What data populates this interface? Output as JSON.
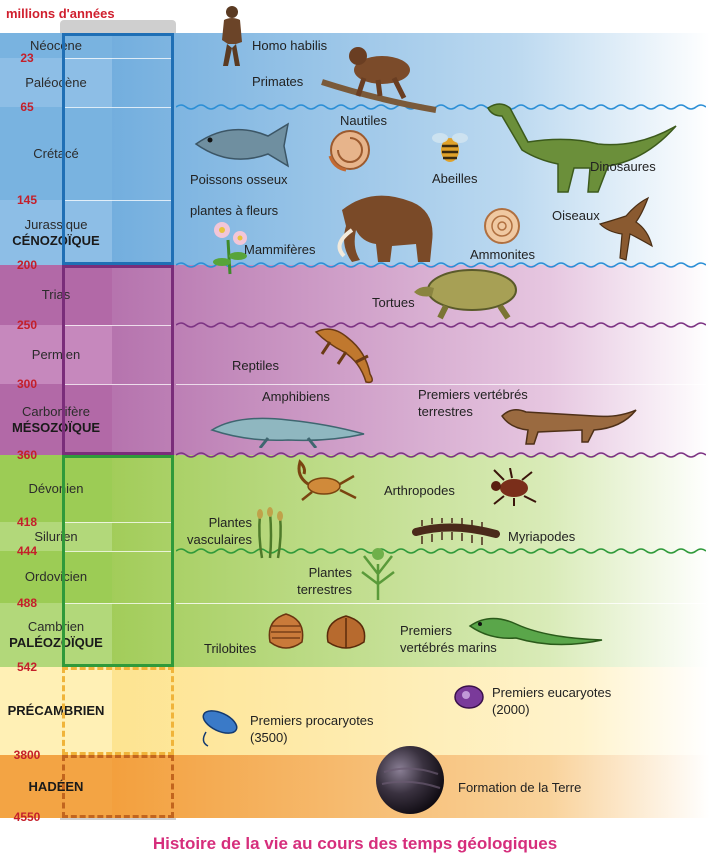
{
  "header": "millions d'années",
  "ticks": [
    "23",
    "65",
    "145",
    "200",
    "250",
    "300",
    "360",
    "418",
    "444",
    "488",
    "542",
    "3800",
    "4550"
  ],
  "periods": {
    "neocene": "Néocène",
    "paleocene": "Paléocène",
    "cretace": "Crétacé",
    "jurassique": "Jurassique",
    "trias": "Trias",
    "permien": "Permien",
    "carbonifere": "Carbonifère",
    "devonien": "Dévonien",
    "silurien": "Silurien",
    "ordovicien": "Ordovicien",
    "cambrien": "Cambrien"
  },
  "eras": {
    "cenozoique": "CÉNOZOÏQUE",
    "mesozoique": "MÉSOZOÏQUE",
    "paleozoique": "PALÉOZOÏQUE",
    "precambrien": "PRÉCAMBRIEN",
    "hadeen": "HADÉEN"
  },
  "labels": {
    "homo_habilis": "Homo habilis",
    "primates": "Primates",
    "nautiles": "Nautiles",
    "poissons_osseux": "Poissons osseux",
    "abeilles": "Abeilles",
    "dinosaures": "Dinosaures",
    "plantes_a_fleurs": "plantes à fleurs",
    "mammiferes": "Mammifères",
    "ammonites": "Ammonites",
    "oiseaux": "Oiseaux",
    "tortues": "Tortues",
    "reptiles": "Reptiles",
    "amphibiens": "Amphibiens",
    "premiers_vertebres_terrestres": [
      "Premiers vertébrés",
      "terrestres"
    ],
    "arthropodes": "Arthropodes",
    "plantes_vasculaires": [
      "Plantes",
      "vasculaires"
    ],
    "myriapodes": "Myriapodes",
    "plantes_terrestres": [
      "Plantes",
      "terrestres"
    ],
    "trilobites": "Trilobites",
    "premiers_vertebres_marins": [
      "Premiers",
      "vertébrés marins"
    ],
    "premiers_eucaryotes": [
      "Premiers eucaryotes",
      "(2000)"
    ],
    "premiers_procaryotes": [
      "Premiers procaryotes",
      "(3500)"
    ],
    "formation_terre": "Formation de la Terre"
  },
  "caption": "Histoire de la vie au cours des temps géologiques",
  "colors": {
    "cenozoic": "#5ea3d8",
    "cenozoic_frame": "#1f6fb5",
    "mesozoic": "#a8529c",
    "mesozoic_frame": "#7a2d7a",
    "paleozoic": "#8fc442",
    "paleozoic_frame": "#2f9a3a",
    "precambrian": "#fde9a0",
    "precambrian_frame": "#f0b43a",
    "hadean": "#f4a341",
    "hadean_frame": "#c2651e",
    "tick_red": "#c41f2a",
    "caption_pink": "#d62e7c",
    "wave_blue": "#2c8fd6",
    "wave_purple": "#7d3484",
    "wave_green": "#2f9a3a"
  }
}
